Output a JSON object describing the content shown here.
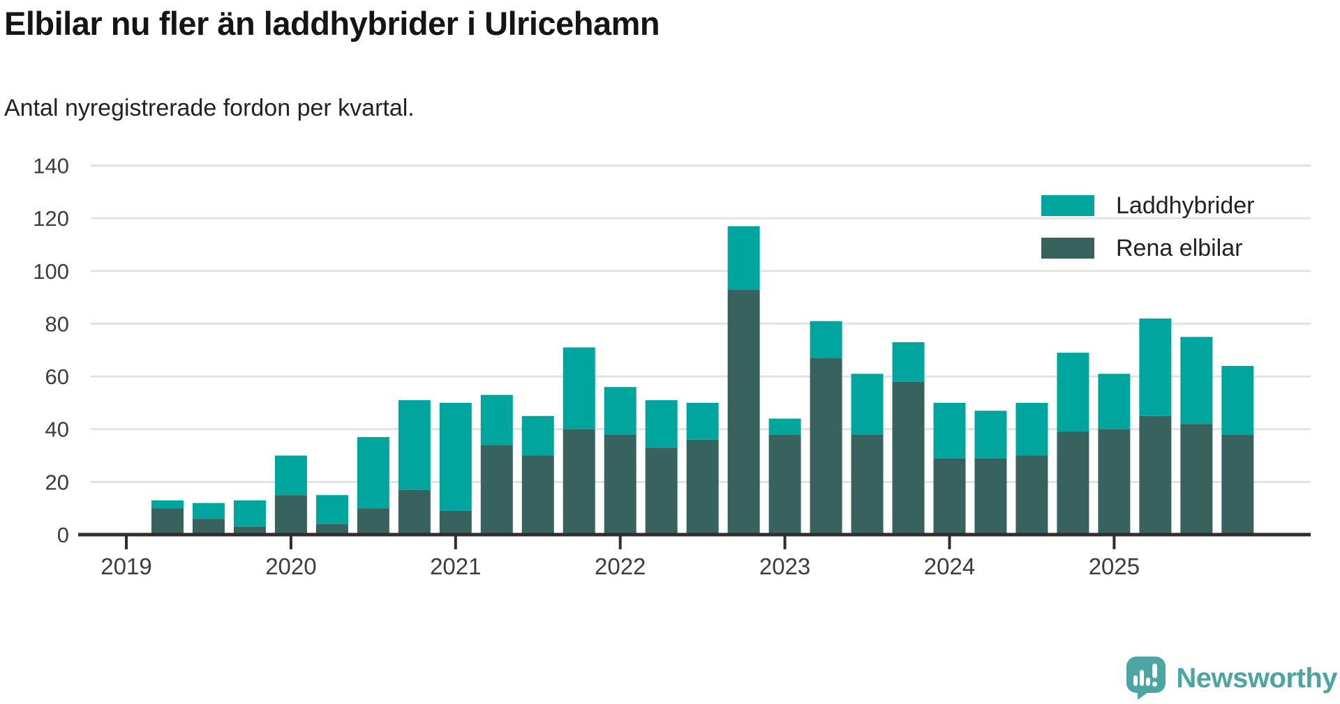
{
  "header": {
    "title": "Elbilar nu fler än laddhybrider i Ulricehamn",
    "subtitle": "Antal nyregistrerade fordon per kvartal."
  },
  "colors": {
    "laddhybrider": "#00a69d",
    "rena_elbilar": "#37625d",
    "grid": "#e2e2e2",
    "axis": "#2e2e2e",
    "tick_text": "#3c3c3c"
  },
  "legend": {
    "items": [
      {
        "label": "Laddhybrider"
      },
      {
        "label": "Rena elbilar"
      }
    ]
  },
  "branding": {
    "name": "Newsworthy",
    "color": "#4ba5a3"
  },
  "chart_data": {
    "type": "bar",
    "stacked": true,
    "title": "Elbilar nu fler än laddhybrider i Ulricehamn",
    "subtitle": "Antal nyregistrerade fordon per kvartal.",
    "categories": [
      "2019 Q2",
      "2019 Q3",
      "2019 Q4",
      "2020 Q1",
      "2020 Q2",
      "2020 Q3",
      "2020 Q4",
      "2021 Q1",
      "2021 Q2",
      "2021 Q3",
      "2021 Q4",
      "2022 Q1",
      "2022 Q2",
      "2022 Q3",
      "2022 Q4",
      "2023 Q1",
      "2023 Q2",
      "2023 Q3",
      "2023 Q4",
      "2024 Q1",
      "2024 Q2",
      "2024 Q3",
      "2024 Q4",
      "2025 Q1",
      "2025 Q2",
      "2025 Q3",
      "2025 Q4"
    ],
    "series": [
      {
        "name": "Laddhybrider",
        "color": "#00a69d",
        "values": [
          3,
          6,
          10,
          15,
          11,
          27,
          34,
          41,
          19,
          15,
          31,
          18,
          18,
          14,
          24,
          6,
          14,
          23,
          15,
          21,
          18,
          20,
          30,
          21,
          37,
          33,
          26
        ]
      },
      {
        "name": "Rena elbilar",
        "color": "#37625d",
        "values": [
          10,
          6,
          3,
          15,
          4,
          10,
          17,
          9,
          34,
          30,
          40,
          38,
          33,
          36,
          93,
          38,
          67,
          38,
          58,
          29,
          29,
          30,
          39,
          40,
          45,
          42,
          38
        ]
      }
    ],
    "stack_order": [
      "Rena elbilar",
      "Laddhybrider"
    ],
    "totals": [
      13,
      12,
      13,
      30,
      15,
      37,
      51,
      50,
      53,
      45,
      71,
      56,
      51,
      50,
      117,
      44,
      81,
      61,
      73,
      50,
      47,
      50,
      69,
      61,
      82,
      75,
      64
    ],
    "x_tick_labels": [
      "2019",
      "2020",
      "2021",
      "2022",
      "2023",
      "2024",
      "2025"
    ],
    "y_ticks": [
      0,
      20,
      40,
      60,
      80,
      100,
      120,
      140
    ],
    "ylim": [
      0,
      140
    ],
    "grid": true,
    "legend_position": "top-right"
  }
}
